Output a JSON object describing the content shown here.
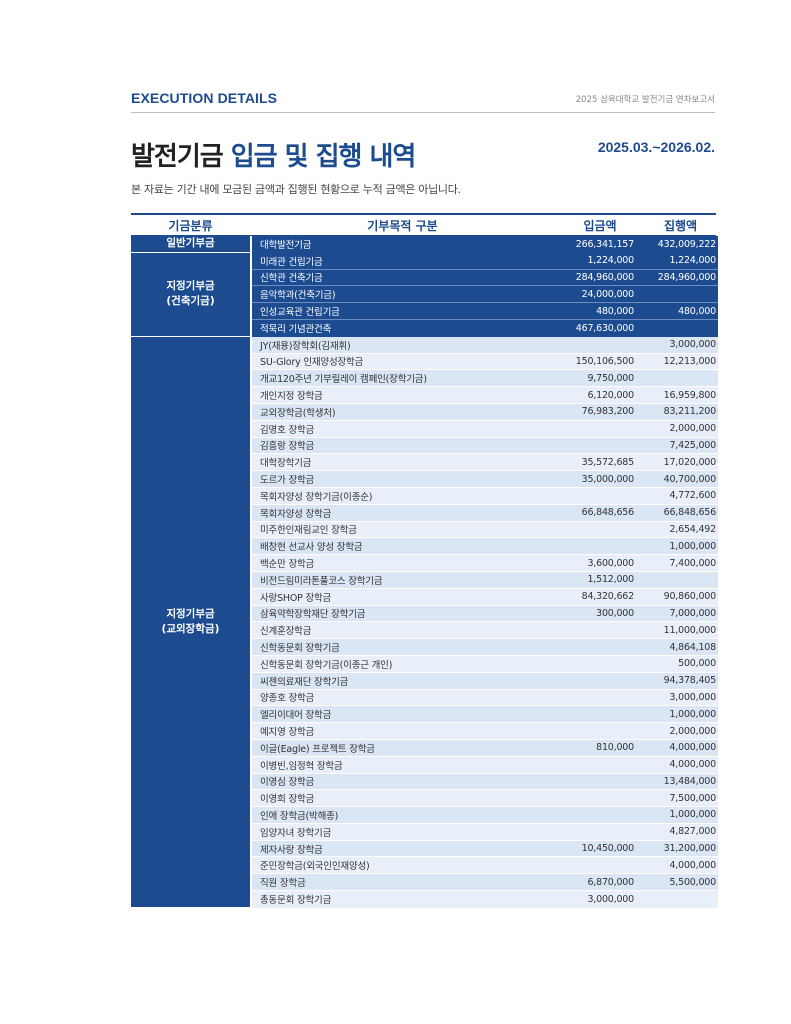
{
  "header": {
    "section": "EXECUTION DETAILS",
    "report": "2025 삼육대학교 발전기금 연차보고서"
  },
  "title": {
    "part1": "발전기금 ",
    "part2": "입금 및 집행 내역"
  },
  "period": "2025.03.~2026.02.",
  "note": "본 자료는 기간 내에 모금된 금액과 집행된 현황으로 누적 금액은 아닙니다.",
  "table": {
    "headers": {
      "category": "기금분류",
      "purpose": "기부목적 구분",
      "deposit": "입금액",
      "execution": "집행액"
    },
    "groups": [
      {
        "category": "일반기부금",
        "style": "dark",
        "rows": [
          {
            "name": "대학발전기금",
            "deposit": "266,341,157",
            "execution": "432,009,222"
          }
        ]
      },
      {
        "category": "지정기부금\n(건축기금)",
        "style": "dark",
        "rows": [
          {
            "name": "미래관 건립기금",
            "deposit": "1,224,000",
            "execution": "1,224,000"
          },
          {
            "name": "신학관 건축기금",
            "deposit": "284,960,000",
            "execution": "284,960,000"
          },
          {
            "name": "음악학과(건축기금)",
            "deposit": "24,000,000",
            "execution": ""
          },
          {
            "name": "인성교육관 건립기금",
            "deposit": "480,000",
            "execution": "480,000"
          },
          {
            "name": "적묵리 기념관건축",
            "deposit": "467,630,000",
            "execution": ""
          }
        ]
      },
      {
        "category": "지정기부금\n(교외장학금)",
        "style": "light",
        "rows": [
          {
            "name": "JY(재용)장학회(김재휘)",
            "deposit": "",
            "execution": "3,000,000"
          },
          {
            "name": "SU-Glory 인재양성장학금",
            "deposit": "150,106,500",
            "execution": "12,213,000"
          },
          {
            "name": "개교120주년 기부릴레이 캠페인(장학기금)",
            "deposit": "9,750,000",
            "execution": ""
          },
          {
            "name": "개인지정 장학금",
            "deposit": "6,120,000",
            "execution": "16,959,800"
          },
          {
            "name": "교외장학금(학생처)",
            "deposit": "76,983,200",
            "execution": "83,211,200"
          },
          {
            "name": "김명호 장학금",
            "deposit": "",
            "execution": "2,000,000"
          },
          {
            "name": "김흥랑 장학금",
            "deposit": "",
            "execution": "7,425,000"
          },
          {
            "name": "대학장학기금",
            "deposit": "35,572,685",
            "execution": "17,020,000"
          },
          {
            "name": "도르가 장학금",
            "deposit": "35,000,000",
            "execution": "40,700,000"
          },
          {
            "name": "목회자양성 장학기금(이종순)",
            "deposit": "",
            "execution": "4,772,600"
          },
          {
            "name": "목회자양성 장학금",
            "deposit": "66,848,656",
            "execution": "66,848,656"
          },
          {
            "name": "미주한인재림교인 장학금",
            "deposit": "",
            "execution": "2,654,492"
          },
          {
            "name": "배창현 선교사 양성 장학금",
            "deposit": "",
            "execution": "1,000,000"
          },
          {
            "name": "백순만 장학금",
            "deposit": "3,600,000",
            "execution": "7,400,000"
          },
          {
            "name": "비전드림미라톤풀코스 장학기금",
            "deposit": "1,512,000",
            "execution": ""
          },
          {
            "name": "사랑SHOP 장학금",
            "deposit": "84,320,662",
            "execution": "90,860,000"
          },
          {
            "name": "삼육약학장학재단 장학기금",
            "deposit": "300,000",
            "execution": "7,000,000"
          },
          {
            "name": "신계훈장학금",
            "deposit": "",
            "execution": "11,000,000"
          },
          {
            "name": "신학동문회 장학기금",
            "deposit": "",
            "execution": "4,864,108"
          },
          {
            "name": "신학동문회 장학기금(이종근 개인)",
            "deposit": "",
            "execution": "500,000"
          },
          {
            "name": "씨젠의료재단 장학기금",
            "deposit": "",
            "execution": "94,378,405"
          },
          {
            "name": "양종호 장학금",
            "deposit": "",
            "execution": "3,000,000"
          },
          {
            "name": "엘리이대어 장학금",
            "deposit": "",
            "execution": "1,000,000"
          },
          {
            "name": "예지영 장학금",
            "deposit": "",
            "execution": "2,000,000"
          },
          {
            "name": "이글(Eagle) 프로젝트 장학금",
            "deposit": "810,000",
            "execution": "4,000,000"
          },
          {
            "name": "이병빈,임정혁 장학금",
            "deposit": "",
            "execution": "4,000,000"
          },
          {
            "name": "이영심 장학금",
            "deposit": "",
            "execution": "13,484,000"
          },
          {
            "name": "이영희 장학금",
            "deposit": "",
            "execution": "7,500,000"
          },
          {
            "name": "인애 장학금(박해종)",
            "deposit": "",
            "execution": "1,000,000"
          },
          {
            "name": "임양자녀 장학기금",
            "deposit": "",
            "execution": "4,827,000"
          },
          {
            "name": "제자사랑 장학금",
            "deposit": "10,450,000",
            "execution": "31,200,000"
          },
          {
            "name": "준민장학금(외국인인재양성)",
            "deposit": "",
            "execution": "4,000,000"
          },
          {
            "name": "직원 장학금",
            "deposit": "6,870,000",
            "execution": "5,500,000"
          },
          {
            "name": "총동문회 장학기금",
            "deposit": "3,000,000",
            "execution": ""
          }
        ]
      }
    ]
  }
}
